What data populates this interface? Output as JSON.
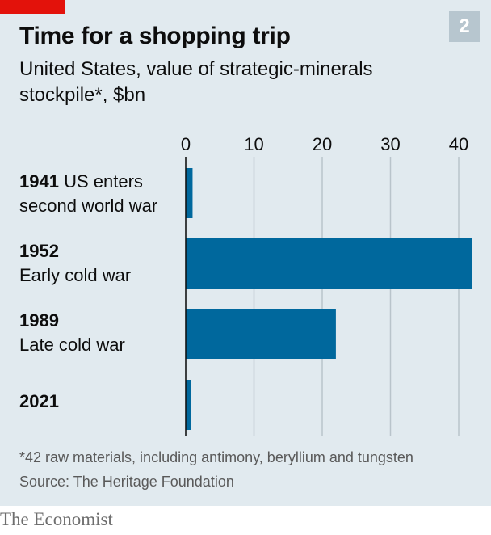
{
  "header": {
    "title": "Time for a shopping trip",
    "badge": "2",
    "subtitle": "United States, value of strategic-minerals stockpile*, $bn"
  },
  "colors": {
    "bar": "#00689d",
    "grid": "#b9c4cb",
    "panel": "#e1eaef",
    "accent_red": "#e3120b"
  },
  "categories": [
    {
      "year": "1941",
      "desc": "US enters second world war"
    },
    {
      "year": "1952",
      "desc": "Early cold war"
    },
    {
      "year": "1989",
      "desc": "Late cold war"
    },
    {
      "year": "2021",
      "desc": ""
    }
  ],
  "chart_data": {
    "type": "bar",
    "orientation": "horizontal",
    "categories": [
      "1941 US enters second world war",
      "1952 Early cold war",
      "1989 Late cold war",
      "2021"
    ],
    "values": [
      1,
      42,
      22,
      0.8
    ],
    "title": "Time for a shopping trip",
    "subtitle": "United States, value of strategic-minerals stockpile*, $bn",
    "xlim": [
      0,
      42
    ],
    "xticks": [
      0,
      10,
      20,
      30,
      40
    ],
    "grid": true,
    "axis_position": "top"
  },
  "footer": {
    "footnote": "*42 raw materials, including antimony, beryllium and tungsten",
    "source": "Source: The Heritage Foundation",
    "brand": "The Economist"
  }
}
